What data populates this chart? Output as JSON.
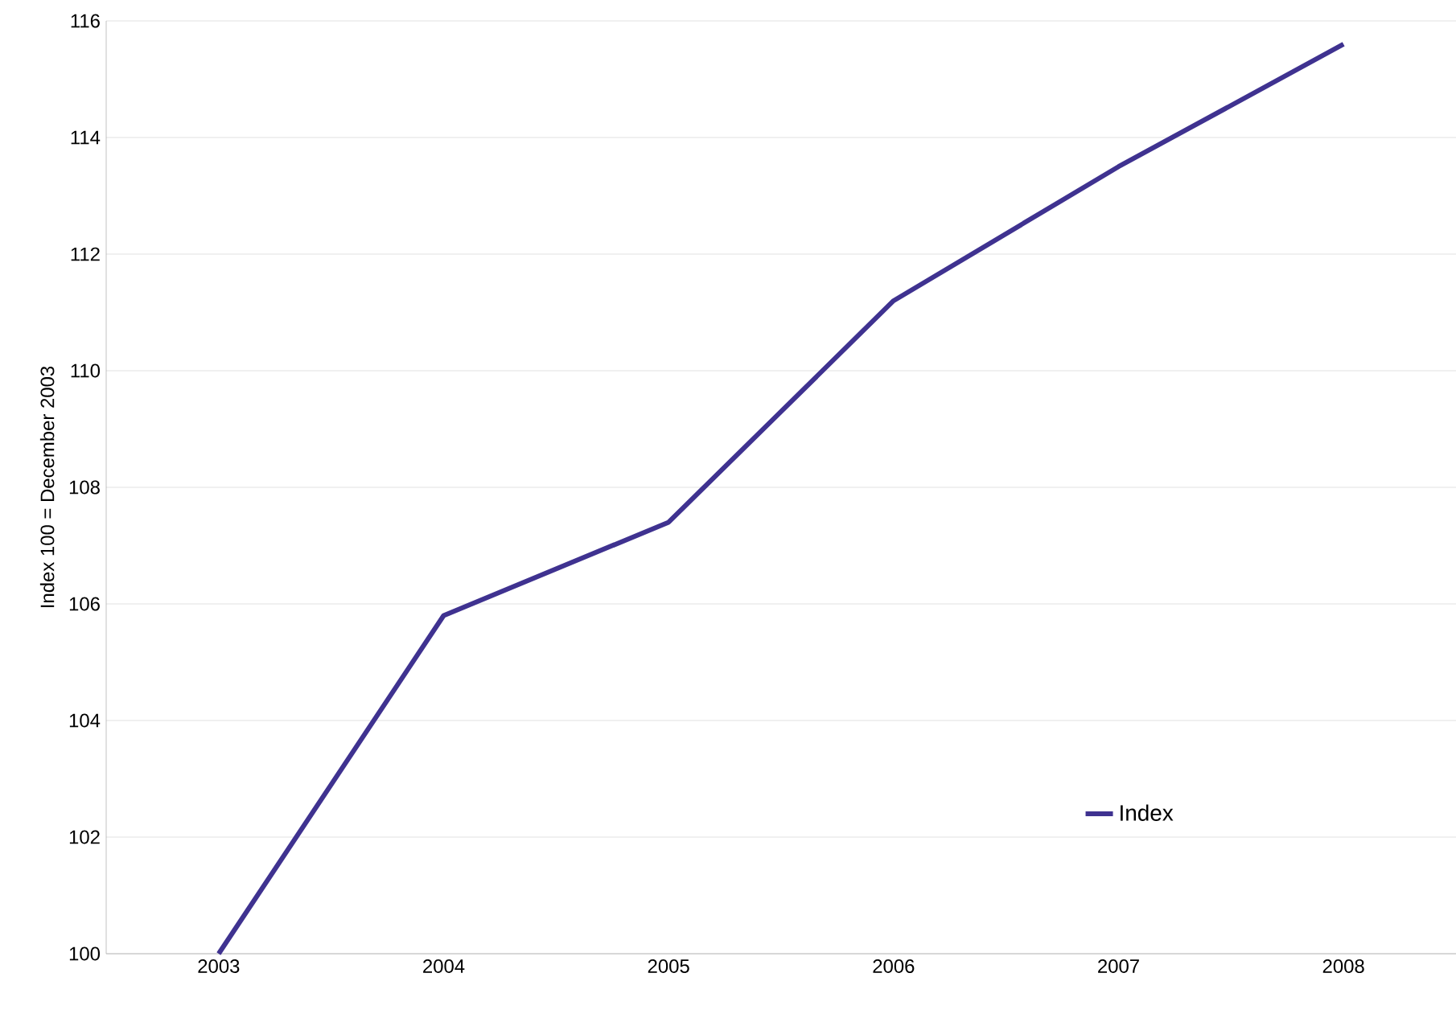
{
  "chart_data": {
    "type": "line",
    "ylabel": "Index 100 = December 2003",
    "categories": [
      "2003",
      "2004",
      "2005",
      "2006",
      "2007",
      "2008"
    ],
    "series": [
      {
        "name": "Index",
        "color": "#3f3290",
        "values": [
          100,
          105.8,
          107.4,
          111.2,
          113.5,
          115.6
        ]
      }
    ],
    "ylim": [
      100,
      116
    ],
    "yticks": [
      100,
      102,
      104,
      106,
      108,
      110,
      112,
      114,
      116
    ],
    "grid": "y",
    "legend": "bottom right",
    "marker": "none",
    "line_style": "solid"
  }
}
